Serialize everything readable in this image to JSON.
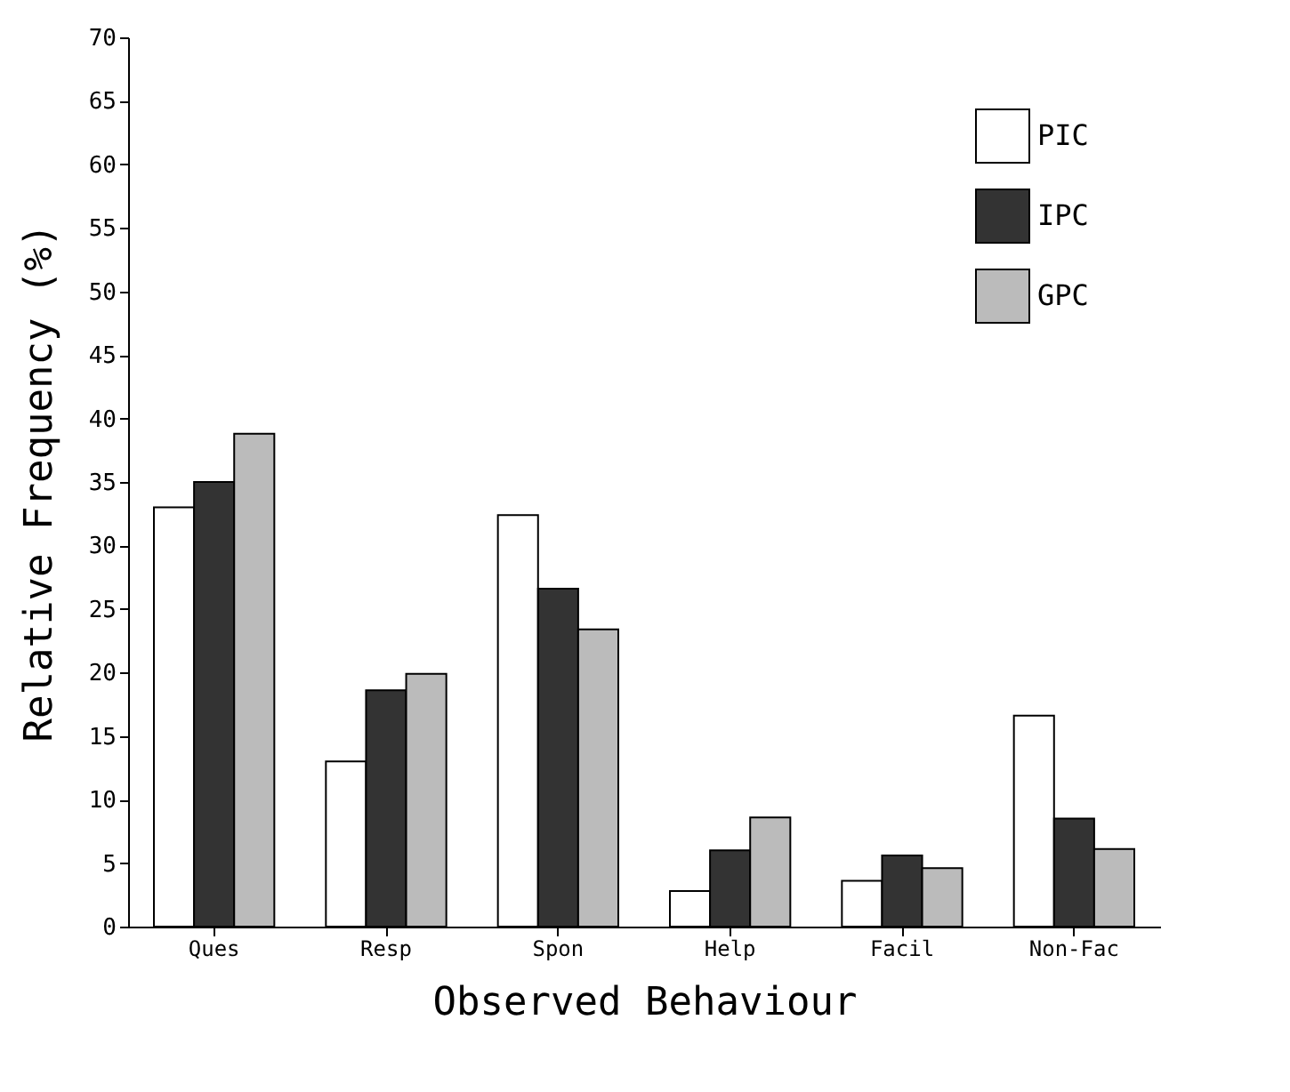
{
  "chart_data": {
    "type": "bar",
    "xlabel": "Observed Behaviour",
    "ylabel": "Relative Frequency (%)",
    "categories": [
      "Ques",
      "Resp",
      "Spon",
      "Help",
      "Facil",
      "Non-Fac"
    ],
    "series": [
      {
        "name": "PIC",
        "color": "#ffffff",
        "values": [
          33.0,
          13.0,
          32.4,
          2.8,
          3.6,
          16.6
        ]
      },
      {
        "name": "IPC",
        "color": "#333333",
        "values": [
          35.0,
          18.6,
          26.6,
          6.0,
          5.6,
          8.5
        ]
      },
      {
        "name": "GPC",
        "color": "#bbbbbb",
        "values": [
          38.8,
          19.9,
          23.4,
          8.6,
          4.6,
          6.1
        ]
      }
    ],
    "ylim": [
      0,
      70
    ],
    "yticks": [
      0,
      5,
      10,
      15,
      20,
      25,
      30,
      35,
      40,
      45,
      50,
      55,
      60,
      65,
      70
    ],
    "legend": "top right"
  }
}
